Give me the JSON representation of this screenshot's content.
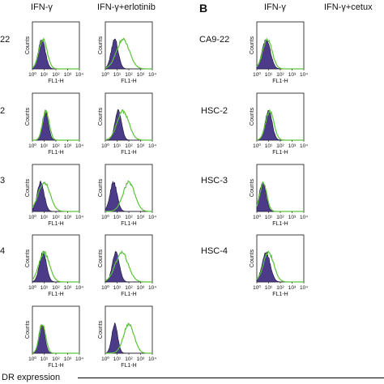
{
  "panel_a": {
    "col_headers": [
      "IFN-γ",
      "IFN-γ+erlotinib"
    ],
    "row_labels": [
      "22",
      "2",
      "3",
      "4",
      ""
    ]
  },
  "panel_b": {
    "letter": "B",
    "col_headers": [
      "IFN-γ",
      "IFN-γ+cetux"
    ],
    "row_labels": [
      "CA9-22",
      "HSC-2",
      "HSC-3",
      "HSC-4"
    ]
  },
  "axis": {
    "y_label": "Counts",
    "x_label": "FL1-H",
    "tick_labels": [
      "10⁰",
      "10¹",
      "10²",
      "10³",
      "10⁴"
    ]
  },
  "footer": {
    "label": "DR expression"
  },
  "colors": {
    "control_fill": "#4b3b88",
    "treated_line": "#5cc43a"
  },
  "chart_data": [
    {
      "type": "area",
      "panel": "A",
      "row": "22",
      "column": "IFN-γ",
      "x_scale": "log",
      "xlim": [
        1,
        10000
      ],
      "xlabel": "FL1-H",
      "ylabel": "Counts",
      "series": [
        {
          "name": "control",
          "peak_log10": 0.8,
          "width": 0.3
        },
        {
          "name": "treated",
          "peak_log10": 0.9,
          "width": 0.35
        }
      ]
    },
    {
      "type": "area",
      "panel": "A",
      "row": "22",
      "column": "IFN-γ+erlotinib",
      "x_scale": "log",
      "xlim": [
        1,
        10000
      ],
      "xlabel": "FL1-H",
      "ylabel": "Counts",
      "series": [
        {
          "name": "control",
          "peak_log10": 0.8,
          "width": 0.3
        },
        {
          "name": "treated",
          "peak_log10": 1.5,
          "width": 0.55
        }
      ]
    },
    {
      "type": "area",
      "panel": "A",
      "row": "2",
      "column": "IFN-γ",
      "x_scale": "log",
      "xlim": [
        1,
        10000
      ],
      "xlabel": "FL1-H",
      "ylabel": "Counts",
      "series": [
        {
          "name": "control",
          "peak_log10": 1.1,
          "width": 0.25
        },
        {
          "name": "treated",
          "peak_log10": 1.15,
          "width": 0.28
        }
      ]
    },
    {
      "type": "area",
      "panel": "A",
      "row": "2",
      "column": "IFN-γ+erlotinib",
      "x_scale": "log",
      "xlim": [
        1,
        10000
      ],
      "xlabel": "FL1-H",
      "ylabel": "Counts",
      "series": [
        {
          "name": "control",
          "peak_log10": 1.1,
          "width": 0.28
        },
        {
          "name": "treated",
          "peak_log10": 1.5,
          "width": 0.5
        }
      ]
    },
    {
      "type": "area",
      "panel": "A",
      "row": "3",
      "column": "IFN-γ",
      "x_scale": "log",
      "xlim": [
        1,
        10000
      ],
      "xlabel": "FL1-H",
      "ylabel": "Counts",
      "series": [
        {
          "name": "control",
          "peak_log10": 0.7,
          "width": 0.3
        },
        {
          "name": "treated",
          "peak_log10": 1.0,
          "width": 0.5
        }
      ]
    },
    {
      "type": "area",
      "panel": "A",
      "row": "3",
      "column": "IFN-γ+erlotinib",
      "x_scale": "log",
      "xlim": [
        1,
        10000
      ],
      "xlabel": "FL1-H",
      "ylabel": "Counts",
      "series": [
        {
          "name": "control",
          "peak_log10": 0.7,
          "width": 0.3
        },
        {
          "name": "treated",
          "peak_log10": 2.0,
          "width": 0.5
        }
      ]
    },
    {
      "type": "area",
      "panel": "A",
      "row": "4",
      "column": "IFN-γ",
      "x_scale": "log",
      "xlim": [
        1,
        10000
      ],
      "xlabel": "FL1-H",
      "ylabel": "Counts",
      "series": [
        {
          "name": "control",
          "peak_log10": 0.9,
          "width": 0.3
        },
        {
          "name": "treated",
          "peak_log10": 1.0,
          "width": 0.45
        }
      ]
    },
    {
      "type": "area",
      "panel": "A",
      "row": "4",
      "column": "IFN-γ+erlotinib",
      "x_scale": "log",
      "xlim": [
        1,
        10000
      ],
      "xlabel": "FL1-H",
      "ylabel": "Counts",
      "series": [
        {
          "name": "control",
          "peak_log10": 0.9,
          "width": 0.3
        },
        {
          "name": "treated",
          "peak_log10": 1.4,
          "width": 0.55
        }
      ]
    },
    {
      "type": "area",
      "panel": "A",
      "row": "",
      "column": "IFN-γ",
      "x_scale": "log",
      "xlim": [
        1,
        10000
      ],
      "xlabel": "FL1-H",
      "ylabel": "Counts",
      "series": [
        {
          "name": "control",
          "peak_log10": 0.8,
          "width": 0.25
        },
        {
          "name": "treated",
          "peak_log10": 0.85,
          "width": 0.28
        }
      ]
    },
    {
      "type": "area",
      "panel": "A",
      "row": "",
      "column": "IFN-γ+erlotinib",
      "x_scale": "log",
      "xlim": [
        1,
        10000
      ],
      "xlabel": "FL1-H",
      "ylabel": "Counts",
      "series": [
        {
          "name": "control",
          "peak_log10": 0.8,
          "width": 0.25
        },
        {
          "name": "treated",
          "peak_log10": 2.0,
          "width": 0.45
        }
      ]
    },
    {
      "type": "area",
      "panel": "B",
      "row": "CA9-22",
      "column": "IFN-γ",
      "x_scale": "log",
      "xlim": [
        1,
        10000
      ],
      "xlabel": "FL1-H",
      "ylabel": "Counts",
      "series": [
        {
          "name": "control",
          "peak_log10": 0.8,
          "width": 0.35
        },
        {
          "name": "treated",
          "peak_log10": 0.9,
          "width": 0.4
        }
      ]
    },
    {
      "type": "area",
      "panel": "B",
      "row": "HSC-2",
      "column": "IFN-γ",
      "x_scale": "log",
      "xlim": [
        1,
        10000
      ],
      "xlabel": "FL1-H",
      "ylabel": "Counts",
      "series": [
        {
          "name": "control",
          "peak_log10": 1.0,
          "width": 0.3
        },
        {
          "name": "treated",
          "peak_log10": 1.1,
          "width": 0.35
        }
      ]
    },
    {
      "type": "area",
      "panel": "B",
      "row": "HSC-3",
      "column": "IFN-γ",
      "x_scale": "log",
      "xlim": [
        1,
        10000
      ],
      "xlabel": "FL1-H",
      "ylabel": "Counts",
      "series": [
        {
          "name": "control",
          "peak_log10": 0.5,
          "width": 0.28
        },
        {
          "name": "treated",
          "peak_log10": 0.55,
          "width": 0.3
        }
      ]
    },
    {
      "type": "area",
      "panel": "B",
      "row": "HSC-4",
      "column": "IFN-γ",
      "x_scale": "log",
      "xlim": [
        1,
        10000
      ],
      "xlabel": "FL1-H",
      "ylabel": "Counts",
      "series": [
        {
          "name": "control",
          "peak_log10": 0.8,
          "width": 0.35
        },
        {
          "name": "treated",
          "peak_log10": 1.0,
          "width": 0.45
        }
      ]
    }
  ]
}
